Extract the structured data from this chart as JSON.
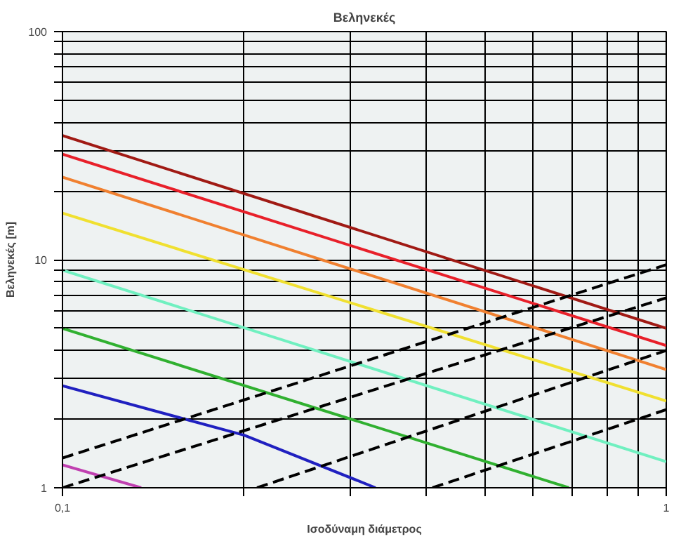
{
  "chart_data": {
    "type": "line",
    "title": "Βεληνεκές",
    "xlabel": "Ισοδύναμη διάμετρος",
    "ylabel": "Βεληνεκές [m]",
    "log": "xy",
    "grid": true,
    "xlim": [
      0.1,
      1
    ],
    "ylim": [
      1,
      100
    ],
    "xticks": [
      {
        "value": 0.1,
        "label": "0,1"
      },
      {
        "value": 0.2,
        "label": null
      },
      {
        "value": 0.3,
        "label": null
      },
      {
        "value": 0.4,
        "label": null
      },
      {
        "value": 0.5,
        "label": null
      },
      {
        "value": 0.6,
        "label": null
      },
      {
        "value": 0.7,
        "label": null
      },
      {
        "value": 0.8,
        "label": null
      },
      {
        "value": 0.9,
        "label": null
      },
      1
    ],
    "yticks": [
      1,
      {
        "value": 2,
        "label": null
      },
      {
        "value": 3,
        "label": null
      },
      {
        "value": 4,
        "label": null
      },
      {
        "value": 5,
        "label": null
      },
      {
        "value": 6,
        "label": null
      },
      {
        "value": 7,
        "label": null
      },
      {
        "value": 8,
        "label": null
      },
      {
        "value": 9,
        "label": null
      },
      10,
      {
        "value": 20,
        "label": null
      },
      {
        "value": 30,
        "label": null
      },
      {
        "value": 40,
        "label": null
      },
      {
        "value": 50,
        "label": null
      },
      {
        "value": 60,
        "label": null
      },
      {
        "value": 70,
        "label": null
      },
      {
        "value": 80,
        "label": null
      },
      {
        "value": 90,
        "label": null
      },
      100
    ],
    "series": [
      {
        "color": "#a01a14",
        "x": [
          0.1,
          1
        ],
        "values": [
          35,
          5
        ]
      },
      {
        "color": "#e8202a",
        "x": [
          0.1,
          1
        ],
        "values": [
          29,
          4.2
        ]
      },
      {
        "color": "#f08030",
        "x": [
          0.1,
          1
        ],
        "values": [
          23,
          3.3
        ]
      },
      {
        "color": "#f0e030",
        "x": [
          0.1,
          1
        ],
        "values": [
          16,
          2.4
        ]
      },
      {
        "color": "#70f0c0",
        "x": [
          0.1,
          1
        ],
        "values": [
          9,
          1.3
        ]
      },
      {
        "color": "#30b030",
        "x": [
          0.1,
          0.69
        ],
        "values": [
          5,
          1
        ]
      },
      {
        "color": "#2020c0",
        "x": [
          0.1,
          0.2,
          0.33
        ],
        "values": [
          2.8,
          1.7,
          1
        ]
      },
      {
        "color": "#c040b0",
        "x": [
          0.1,
          0.135
        ],
        "values": [
          1.26,
          1
        ]
      },
      {
        "color": "#000000",
        "line_style": "dashed",
        "x": [
          0.1,
          1
        ],
        "values": [
          1.35,
          9.5
        ]
      },
      {
        "color": "#000000",
        "line_style": "dashed",
        "x": [
          0.1,
          1
        ],
        "values": [
          1,
          6.8
        ]
      },
      {
        "color": "#000000",
        "line_style": "dashed",
        "x": [
          0.21,
          1
        ],
        "values": [
          1,
          4
        ]
      },
      {
        "color": "#000000",
        "line_style": "dashed",
        "x": [
          0.41,
          1
        ],
        "values": [
          1,
          2.2
        ]
      }
    ]
  }
}
